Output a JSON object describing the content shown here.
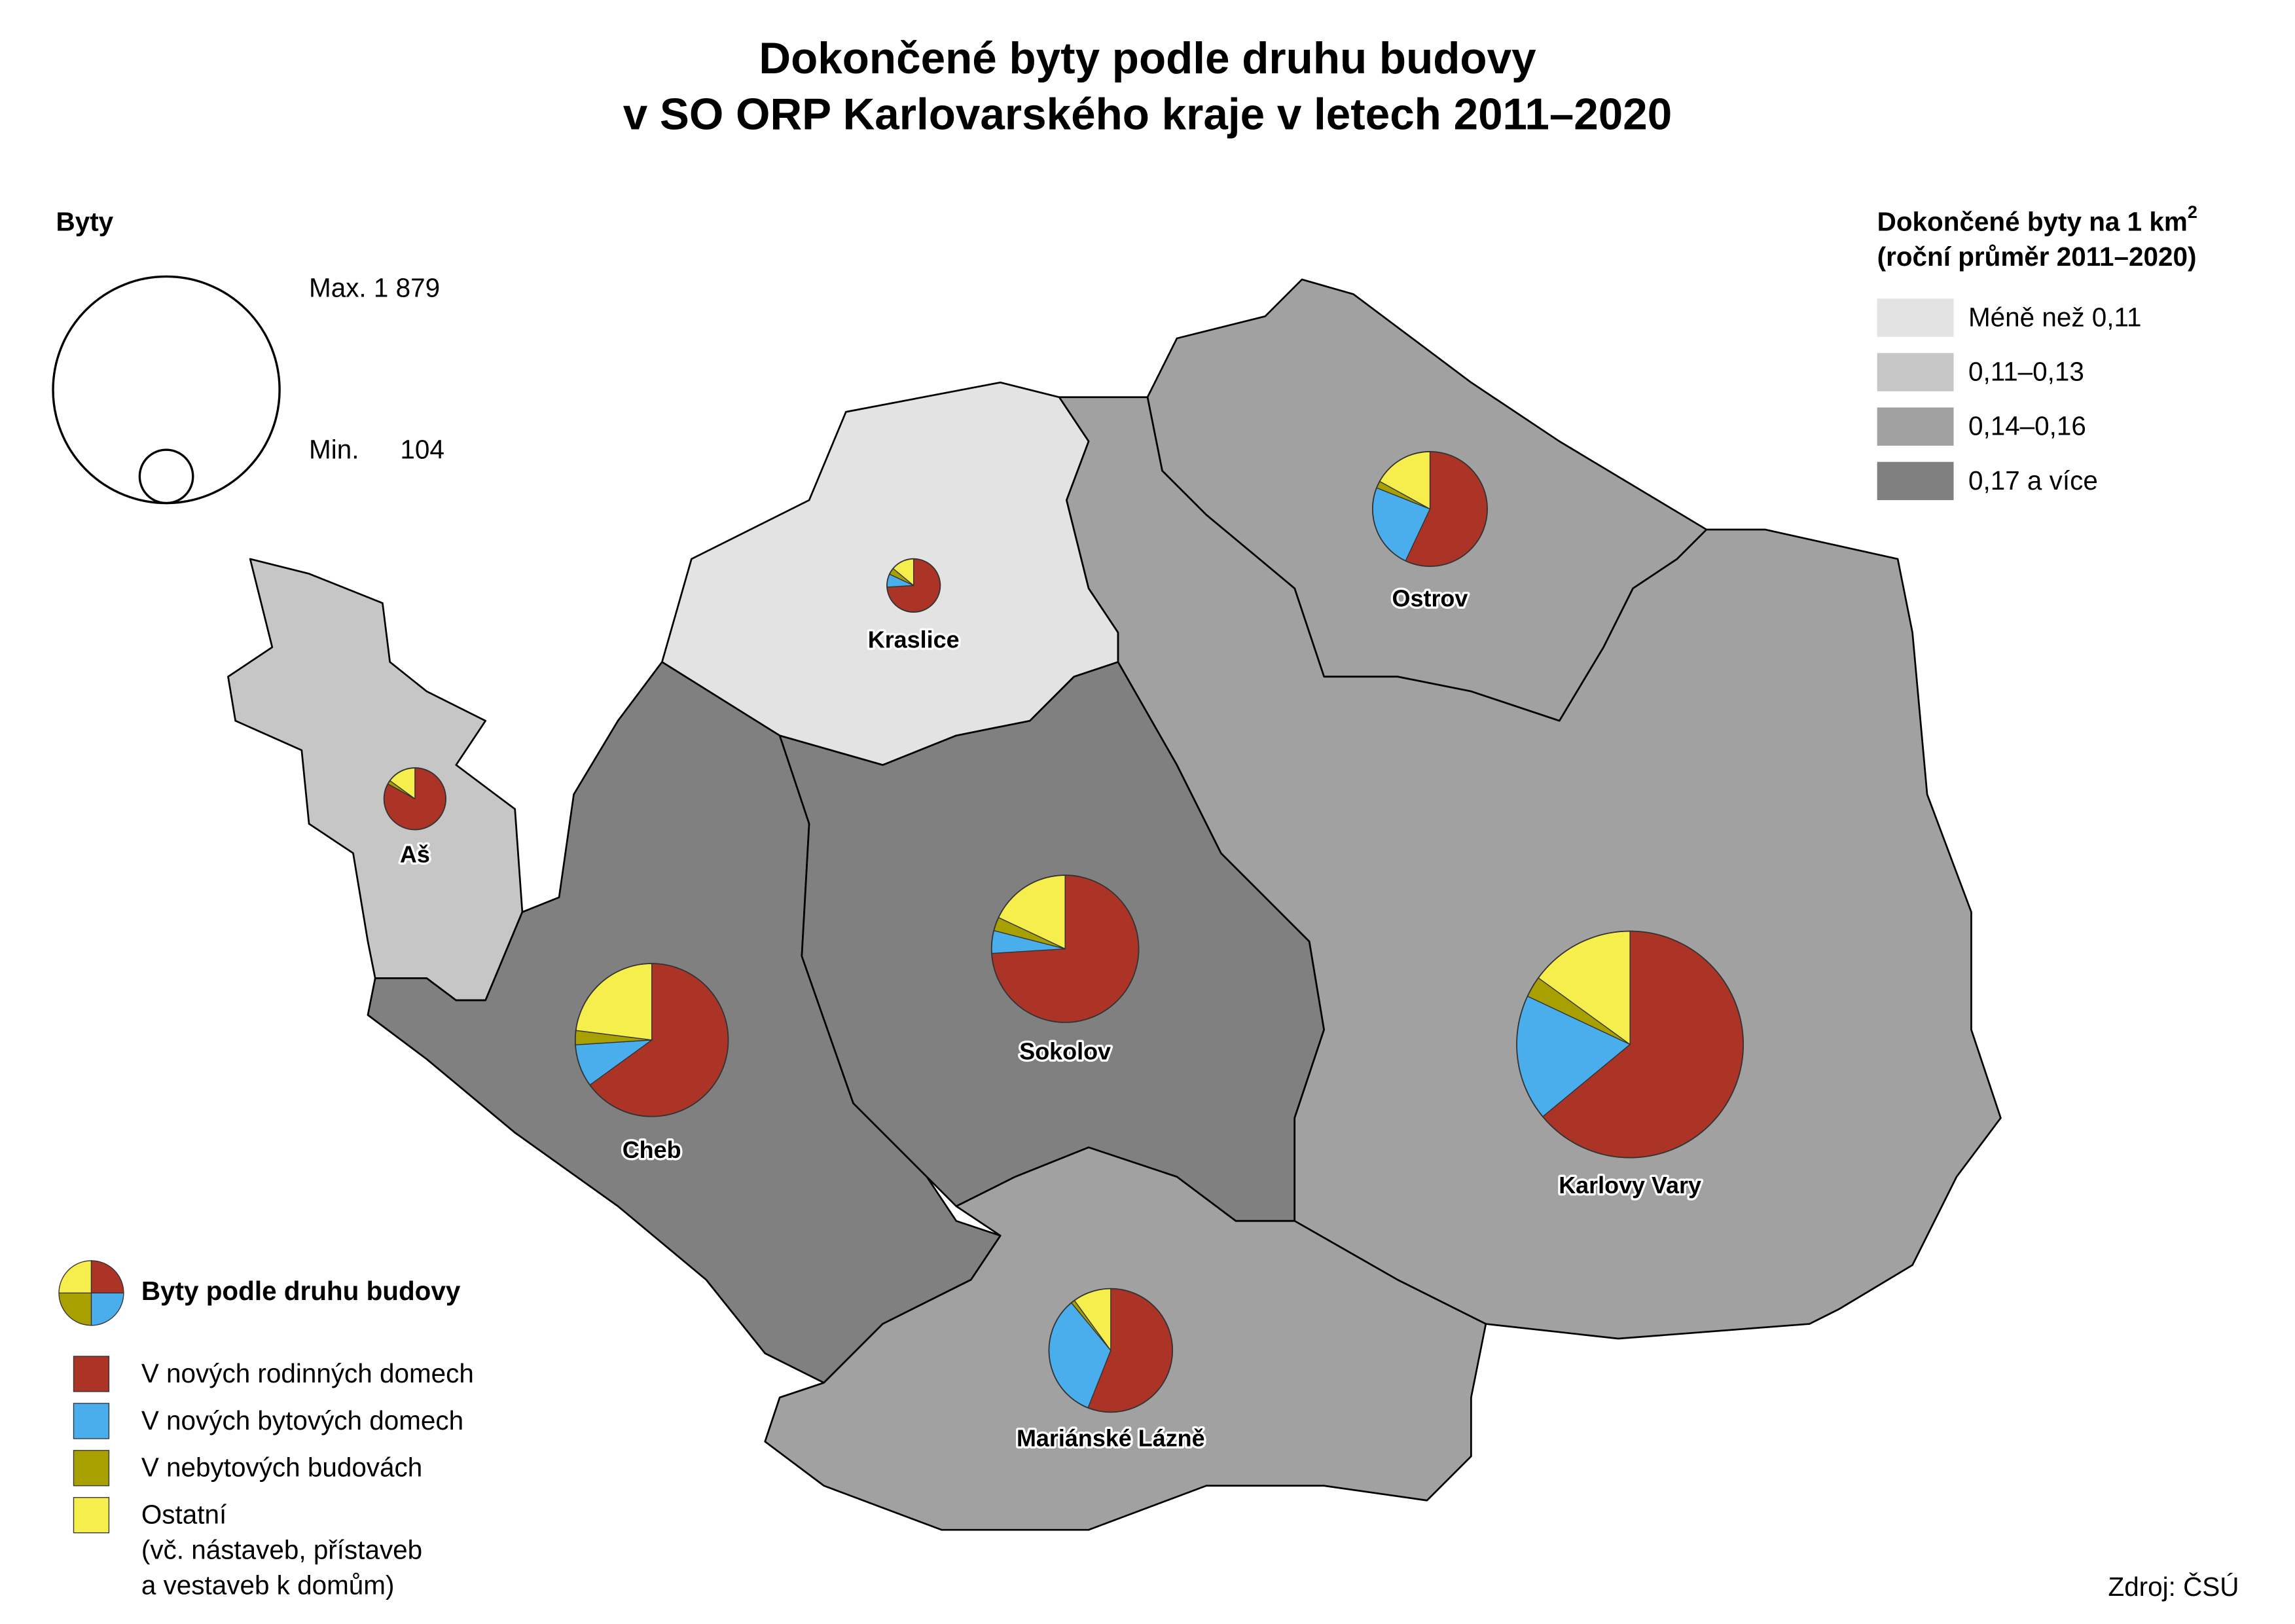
{
  "title": [
    "Dokončené byty podle druhu budovy",
    "v SO ORP Karlovarského kraje v letech 2011–2020"
  ],
  "size_legend": {
    "title": "Byty",
    "max": {
      "value": 1879,
      "label": "Max. 1 879"
    },
    "min": {
      "label": "Min.",
      "value": 104
    }
  },
  "density_legend": {
    "title": "Dokončené byty na 1 km",
    "title_sup": "2",
    "subtitle": "(roční průměr 2011–2020)",
    "classes": [
      {
        "label": "Méně než 0,11",
        "color": "#e3e3e3"
      },
      {
        "label": "0,11–0,13",
        "color": "#c6c6c6"
      },
      {
        "label": "0,14–0,16",
        "color": "#a1a1a1"
      },
      {
        "label": "0,17 a více",
        "color": "#808080"
      }
    ]
  },
  "building_legend": {
    "title": "Byty podle druhu budovy",
    "items": [
      {
        "name": "V nových rodinných domech",
        "color": "#ab3426"
      },
      {
        "name": "V nových bytových domech",
        "color": "#4aaeed"
      },
      {
        "name": "V nebytových budovách",
        "color": "#a8a000"
      },
      {
        "name": "Ostatní",
        "note": [
          "(vč. nástaveb, přístaveb",
          "a vestaveb k domům)"
        ],
        "color": "#f5ee4c"
      }
    ]
  },
  "regions": [
    {
      "name": "Aš",
      "class": "0,11–0,13",
      "total": 140,
      "shares": [
        83,
        0,
        2,
        15
      ]
    },
    {
      "name": "Cheb",
      "class": "0,17 a více",
      "total": 857,
      "shares": [
        65,
        9,
        3,
        23
      ]
    },
    {
      "name": "Sokolov",
      "class": "0,17 a více",
      "total": 793,
      "shares": [
        74,
        5,
        3,
        18
      ]
    },
    {
      "name": "Kraslice",
      "class": "Méně než 0,11",
      "total": 104,
      "shares": [
        74,
        8,
        4,
        14
      ]
    },
    {
      "name": "Ostrov",
      "class": "0,14–0,16",
      "total": 482,
      "shares": [
        57,
        24,
        2,
        17
      ]
    },
    {
      "name": "Karlovy Vary",
      "class": "0,14–0,16",
      "total": 1879,
      "shares": [
        64,
        18,
        3,
        15
      ]
    },
    {
      "name": "Mariánské Lázně",
      "class": "0,14–0,16",
      "total": 559,
      "shares": [
        56,
        33,
        1,
        10
      ]
    }
  ],
  "source": "Zdroj: ČSÚ"
}
